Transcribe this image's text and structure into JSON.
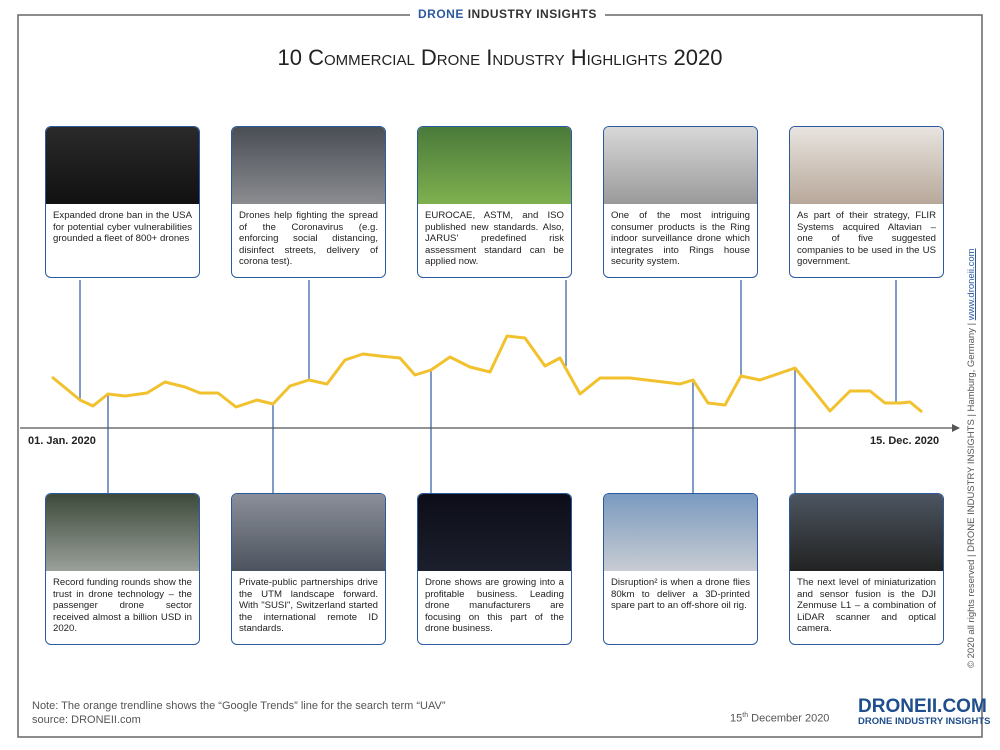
{
  "header": {
    "brand_blue": "DRONE",
    "brand_rest": "INDUSTRY INSIGHTS"
  },
  "title": "10 Commercial Drone Industry Highlights 2020",
  "top_cards": [
    {
      "text": "Expanded drone ban in the USA for potential cyber vulnerabilities grounded a fleet of 800+ drones"
    },
    {
      "text": "Drones help fighting the spread of the Coronavirus (e.g. enforcing social distancing, disinfect streets, delivery of corona test)."
    },
    {
      "text": "EUROCAE, ASTM, and ISO published new standards. Also, JARUS' predefined risk assessment standard can be applied now."
    },
    {
      "text": "One of the most intriguing consumer products is the Ring indoor surveillance drone which integrates into Rings house security system."
    },
    {
      "text": "As part of their strategy, FLIR Systems acquired Altavian – one of five suggested companies to be used in the US government."
    }
  ],
  "bottom_cards": [
    {
      "text": "Record funding rounds show the trust in drone technology – the passenger drone sector received almost a billion USD in 2020."
    },
    {
      "text": "Private-public partnerships drive the UTM landscape forward. With \"SUSI\", Switzerland started the international remote ID standards."
    },
    {
      "text": "Drone shows are growing into a profitable business. Leading drone manufacturers are focusing on this part of the drone business."
    },
    {
      "text": "Disruption² is when a drone flies 80km to deliver a 3D-printed spare part to an off-shore oil rig."
    },
    {
      "text": "The next level of miniaturization and sensor fusion is the DJI Zenmuse L1 – a combination of LiDAR scanner and optical camera."
    }
  ],
  "timeline": {
    "start": "01. Jan. 2020",
    "end": "15. Dec. 2020"
  },
  "footer": {
    "note": "Note: The orange trendline shows the “Google Trends” line for the search term “UAV”",
    "source": "source: DRONEII.com",
    "date_day": "15",
    "date_suffix": "th",
    "date_rest": "December 2020",
    "logo": "DRONEII.COM",
    "logo_sub": "DRONE INDUSTRY INSIGHTS"
  },
  "side": {
    "text": "© 2020 all rights reserved | DRONE INDUSTRY INSIGHTS | Hamburg, Germany |",
    "link": "www.droneii.com"
  }
}
